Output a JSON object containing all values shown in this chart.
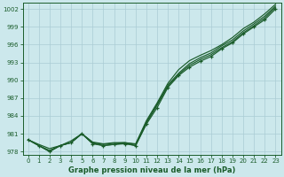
{
  "xlabel": "Graphe pression niveau de la mer (hPa)",
  "background_color": "#cce8ec",
  "grid_color": "#aaccd4",
  "line_color": "#1a5c2a",
  "xlim": [
    -0.5,
    23.5
  ],
  "ylim": [
    977.5,
    1003.0
  ],
  "yticks": [
    978,
    981,
    984,
    987,
    990,
    993,
    996,
    999,
    1002
  ],
  "xticks": [
    0,
    1,
    2,
    3,
    4,
    5,
    6,
    7,
    8,
    9,
    10,
    11,
    12,
    13,
    14,
    15,
    16,
    17,
    18,
    19,
    20,
    21,
    22,
    23
  ],
  "series_A": [
    980.0,
    979.2,
    978.5,
    979.0,
    979.8,
    981.0,
    979.6,
    979.3,
    979.5,
    979.5,
    979.3,
    983.2,
    986.2,
    989.5,
    991.8,
    993.3,
    994.2,
    995.0,
    996.0,
    997.2,
    998.7,
    999.8,
    1001.2,
    1002.8
  ],
  "series_B": [
    980.0,
    979.0,
    978.2,
    979.0,
    979.5,
    981.0,
    979.4,
    979.0,
    979.2,
    979.4,
    979.0,
    982.8,
    985.8,
    989.0,
    991.0,
    992.5,
    993.5,
    994.3,
    995.5,
    996.5,
    998.0,
    999.2,
    1000.5,
    1002.3
  ],
  "series_C": [
    980.0,
    979.0,
    978.0,
    979.0,
    979.5,
    981.0,
    979.5,
    979.2,
    979.4,
    979.5,
    979.2,
    983.0,
    986.0,
    989.2,
    991.2,
    992.8,
    993.8,
    994.6,
    995.8,
    996.8,
    998.3,
    999.5,
    1000.8,
    1002.5
  ],
  "series_main": [
    980.0,
    979.0,
    978.0,
    979.0,
    979.5,
    981.0,
    979.3,
    979.0,
    979.2,
    979.3,
    979.0,
    982.6,
    985.4,
    988.8,
    990.8,
    992.2,
    993.2,
    994.0,
    995.3,
    996.3,
    997.8,
    999.0,
    1000.2,
    1002.0
  ]
}
